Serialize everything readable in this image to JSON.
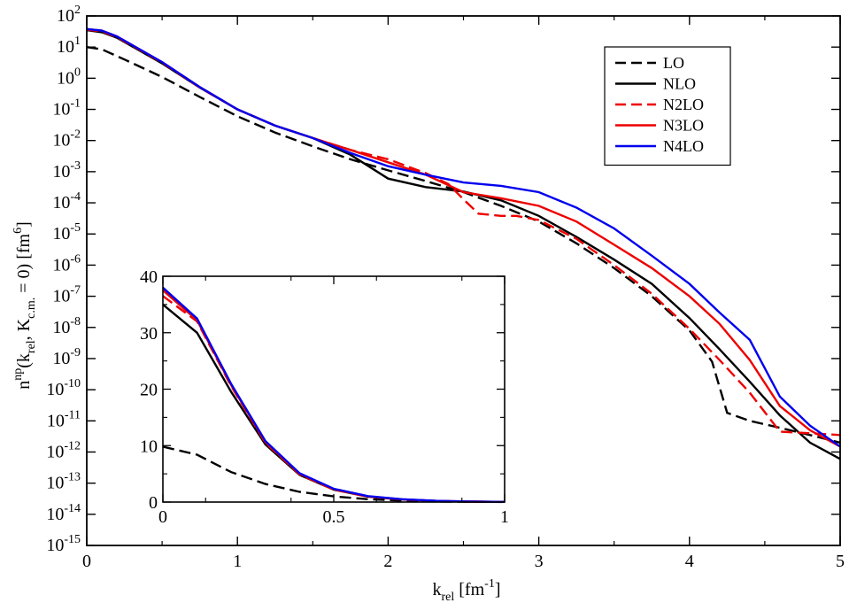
{
  "chart_data": [
    {
      "type": "line",
      "title": "",
      "xlabel": {
        "base": "k",
        "sub": "rel",
        "rest": " [fm",
        "sup": "-1",
        "end": "]"
      },
      "ylabel": {
        "p1": "n",
        "p1sup": "np",
        "p2": "(k",
        "p2sub": "rel",
        "p3": ", K",
        "p3sub": "c.m.",
        "p4": " = 0) [fm",
        "p4sup": "6",
        "p5": "]"
      },
      "yscale": "log",
      "xlim": [
        0,
        5
      ],
      "ylim_exp": [
        -15,
        2
      ],
      "x_ticks": [
        "0",
        "1",
        "2",
        "3",
        "4",
        "5"
      ],
      "y_tick_base": "10",
      "y_tick_exponents": [
        "-15",
        "-14",
        "-13",
        "-12",
        "-11",
        "-10",
        "-9",
        "-8",
        "-7",
        "-6",
        "-5",
        "-4",
        "-3",
        "-2",
        "-1",
        "0",
        "1",
        "2"
      ],
      "legend_position": "top-right",
      "series": [
        {
          "name": "LO",
          "color": "#000000",
          "dash": "dashed",
          "x": [
            0,
            0.1,
            0.25,
            0.5,
            0.75,
            1.0,
            1.25,
            1.5,
            1.75,
            2.0,
            2.25,
            2.5,
            2.75,
            3.0,
            3.25,
            3.5,
            3.75,
            4.0,
            4.15,
            4.25,
            4.4,
            4.6,
            4.8,
            5.0
          ],
          "y": [
            10,
            8.5,
            4,
            1.1,
            0.25,
            0.06,
            0.018,
            0.0065,
            0.0025,
            0.0011,
            0.0005,
            0.00022,
            8e-05,
            2.5e-05,
            5e-06,
            8e-07,
            1e-07,
            8e-09,
            8e-10,
            1.8e-11,
            1e-11,
            6e-12,
            3.5e-12,
            2e-12
          ]
        },
        {
          "name": "NLO",
          "color": "#000000",
          "dash": "solid",
          "x": [
            0,
            0.1,
            0.2,
            0.5,
            0.75,
            1.0,
            1.25,
            1.5,
            1.75,
            2.0,
            2.25,
            2.5,
            2.75,
            3.0,
            3.25,
            3.5,
            3.75,
            4.0,
            4.2,
            4.4,
            4.6,
            4.8,
            5.0
          ],
          "y": [
            35,
            30,
            20,
            3,
            0.5,
            0.1,
            0.03,
            0.012,
            0.0035,
            0.0006,
            0.00032,
            0.00023,
            0.00012,
            3.8e-05,
            8e-06,
            1.5e-06,
            2.5e-07,
            2e-08,
            2e-09,
            1.8e-10,
            1.5e-11,
            2e-12,
            6e-13
          ]
        },
        {
          "name": "N2LO",
          "color": "#ee0000",
          "dash": "dashed",
          "x": [
            0,
            0.1,
            0.2,
            0.5,
            0.75,
            1.0,
            1.25,
            1.5,
            1.75,
            2.0,
            2.25,
            2.4,
            2.5,
            2.6,
            2.75,
            2.85,
            3.0,
            3.25,
            3.5,
            3.75,
            4.0,
            4.2,
            4.4,
            4.6,
            4.8,
            5.0
          ],
          "y": [
            36,
            32,
            21,
            3.2,
            0.5,
            0.1,
            0.03,
            0.012,
            0.005,
            0.0025,
            0.0009,
            0.0004,
            0.00013,
            4.5e-05,
            3.8e-05,
            3.8e-05,
            2.8e-05,
            7e-06,
            1e-06,
            1.2e-07,
            9e-09,
            9e-10,
            8e-11,
            4.5e-12,
            4e-12,
            3.5e-12
          ]
        },
        {
          "name": "N3LO",
          "color": "#ee0000",
          "dash": "solid",
          "x": [
            0,
            0.1,
            0.2,
            0.5,
            0.75,
            1.0,
            1.25,
            1.5,
            1.75,
            2.0,
            2.25,
            2.5,
            2.75,
            3.0,
            3.25,
            3.5,
            3.75,
            4.0,
            4.2,
            4.4,
            4.6,
            4.8,
            5.0
          ],
          "y": [
            38,
            34,
            22,
            3.3,
            0.52,
            0.1,
            0.03,
            0.012,
            0.005,
            0.002,
            0.0008,
            0.00022,
            0.00014,
            8e-05,
            2.5e-05,
            4.5e-06,
            8e-07,
            1e-07,
            1.3e-08,
            9e-10,
            3e-11,
            5e-12,
            1.5e-12
          ]
        },
        {
          "name": "N4LO",
          "color": "#0000ee",
          "dash": "solid",
          "x": [
            0,
            0.1,
            0.2,
            0.5,
            0.75,
            1.0,
            1.25,
            1.5,
            1.75,
            2.0,
            2.25,
            2.5,
            2.75,
            3.0,
            3.25,
            3.5,
            3.75,
            4.0,
            4.2,
            4.4,
            4.6,
            4.8,
            5.0
          ],
          "y": [
            38,
            34,
            22,
            3.3,
            0.52,
            0.1,
            0.03,
            0.012,
            0.004,
            0.0015,
            0.0008,
            0.00045,
            0.00035,
            0.00022,
            7e-05,
            1.5e-05,
            2e-06,
            2.5e-07,
            3e-08,
            4e-09,
            6e-11,
            7e-12,
            1.5e-12
          ]
        }
      ]
    },
    {
      "type": "line",
      "title": "",
      "xlabel": "",
      "ylabel": "",
      "xlim": [
        0,
        1
      ],
      "ylim": [
        0,
        40
      ],
      "x_ticks": [
        "0",
        "0.5",
        "1"
      ],
      "y_ticks": [
        "0",
        "10",
        "20",
        "30",
        "40"
      ],
      "series": [
        {
          "name": "LO",
          "color": "#000000",
          "dash": "dashed",
          "x": [
            0,
            0.1,
            0.2,
            0.3,
            0.4,
            0.5,
            0.6,
            0.7,
            0.8,
            0.9,
            1.0
          ],
          "y": [
            9.8,
            8.4,
            5.3,
            3.2,
            1.8,
            1.0,
            0.5,
            0.25,
            0.1,
            0.04,
            0.02
          ]
        },
        {
          "name": "NLO",
          "color": "#000000",
          "dash": "solid",
          "x": [
            0,
            0.1,
            0.2,
            0.3,
            0.4,
            0.5,
            0.6,
            0.7,
            0.8,
            0.9,
            1.0
          ],
          "y": [
            35,
            30,
            19.5,
            10.2,
            4.8,
            2.2,
            0.95,
            0.45,
            0.2,
            0.08,
            0.03
          ]
        },
        {
          "name": "N2LO",
          "color": "#ee0000",
          "dash": "dashed",
          "x": [
            0,
            0.1,
            0.2,
            0.3,
            0.4,
            0.5,
            0.6,
            0.7,
            0.8,
            0.9,
            1.0
          ],
          "y": [
            36.5,
            32,
            20.5,
            10.5,
            4.9,
            2.2,
            0.95,
            0.45,
            0.2,
            0.08,
            0.03
          ]
        },
        {
          "name": "N3LO",
          "color": "#ee0000",
          "dash": "solid",
          "x": [
            0,
            0.1,
            0.2,
            0.3,
            0.4,
            0.5,
            0.6,
            0.7,
            0.8,
            0.9,
            1.0
          ],
          "y": [
            37.5,
            32.2,
            20.7,
            10.6,
            5.0,
            2.3,
            1.0,
            0.48,
            0.21,
            0.08,
            0.03
          ]
        },
        {
          "name": "N4LO",
          "color": "#0000ee",
          "dash": "solid",
          "x": [
            0,
            0.1,
            0.2,
            0.3,
            0.4,
            0.5,
            0.6,
            0.7,
            0.8,
            0.9,
            1.0
          ],
          "y": [
            38,
            32.5,
            20.9,
            10.8,
            5.1,
            2.35,
            1.05,
            0.5,
            0.22,
            0.09,
            0.03
          ]
        }
      ]
    }
  ]
}
